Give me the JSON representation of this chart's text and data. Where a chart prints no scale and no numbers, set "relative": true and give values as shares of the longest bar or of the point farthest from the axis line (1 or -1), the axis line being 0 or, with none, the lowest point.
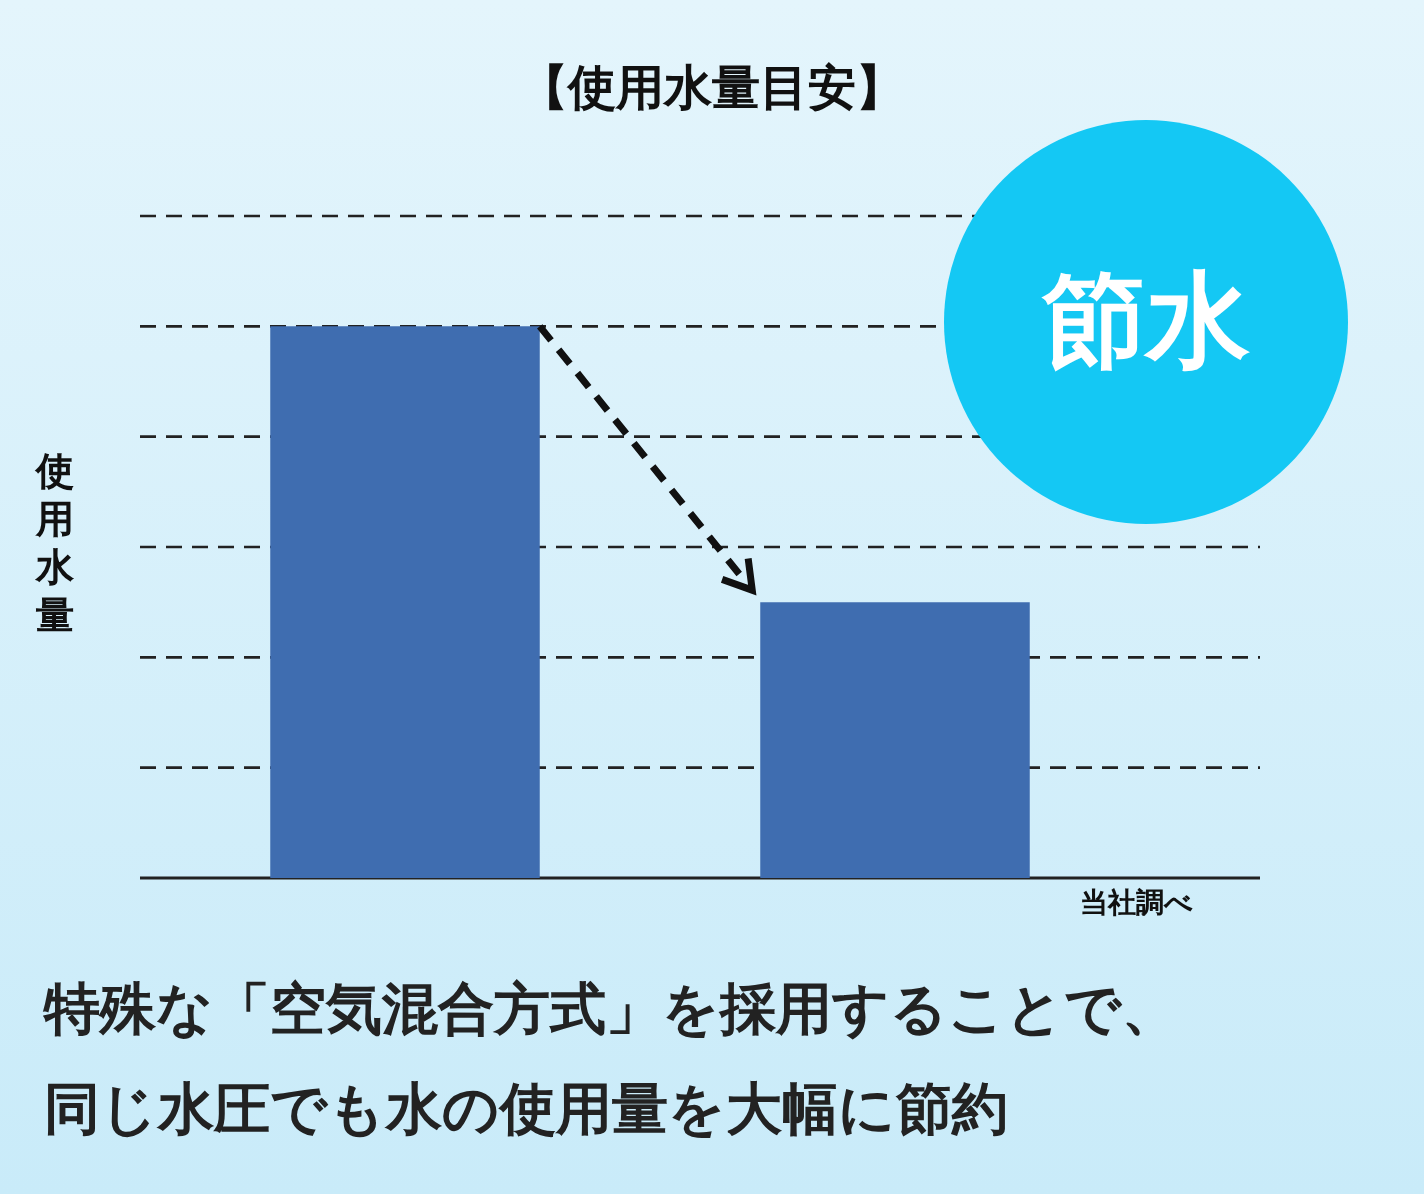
{
  "chart_data": {
    "type": "bar",
    "title": "【使用水量目安】",
    "ylabel": "使用水量",
    "categories": [
      null,
      null
    ],
    "relative": true,
    "grid": "y",
    "legend": false,
    "series": [
      {
        "color": "#3f6db0",
        "values": [
          1,
          0.5
        ]
      }
    ],
    "annotations": [
      "節水",
      "当社調べ",
      "特殊な「空気混合方式」を採用することで、",
      "同じ水圧でも水の使用量を大幅に節約"
    ]
  }
}
